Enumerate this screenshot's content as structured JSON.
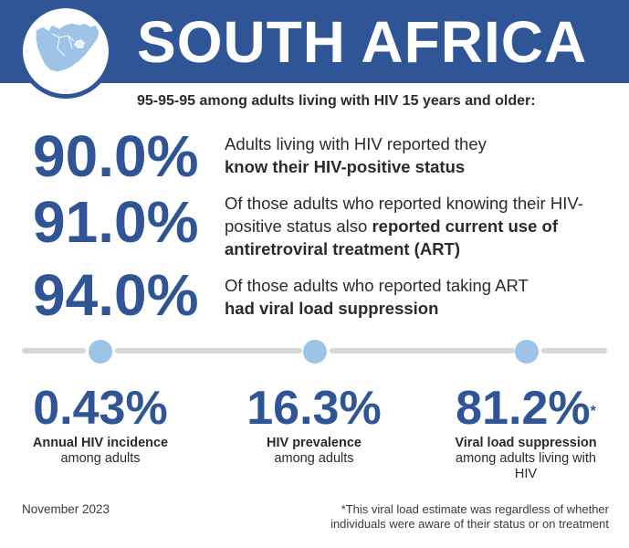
{
  "header": {
    "title": "SOUTH AFRICA",
    "map_icon": "south-africa-map-icon",
    "brand_color": "#2f5597",
    "accent_color": "#9dc3e6"
  },
  "subtitle": "95-95-95 among adults living with HIV 15 years and older:",
  "cascade": [
    {
      "value": "90.0%",
      "text_before": "Adults living with HIV reported they",
      "text_bold": "know their HIV-positive status",
      "text_after": ""
    },
    {
      "value": "91.0%",
      "text_before": "Of those adults who reported knowing their HIV-positive status also",
      "text_bold": "reported current use of antiretroviral treatment (ART)",
      "text_after": ""
    },
    {
      "value": "94.0%",
      "text_before": "Of those adults who reported taking ART",
      "text_bold": "had viral load suppression",
      "text_after": ""
    }
  ],
  "stats": [
    {
      "value": "0.43%",
      "label_bold": "Annual HIV incidence",
      "label_rest": "among adults"
    },
    {
      "value": "16.3%",
      "label_bold": "HIV prevalence",
      "label_rest": "among adults"
    },
    {
      "value": "81.2%",
      "asterisk": "*",
      "label_bold": "Viral load suppression",
      "label_rest": "among adults living with HIV"
    }
  ],
  "footer": {
    "date": "November 2023",
    "footnote": "*This viral load estimate was regardless of whether individuals were aware of their status or on treatment"
  }
}
